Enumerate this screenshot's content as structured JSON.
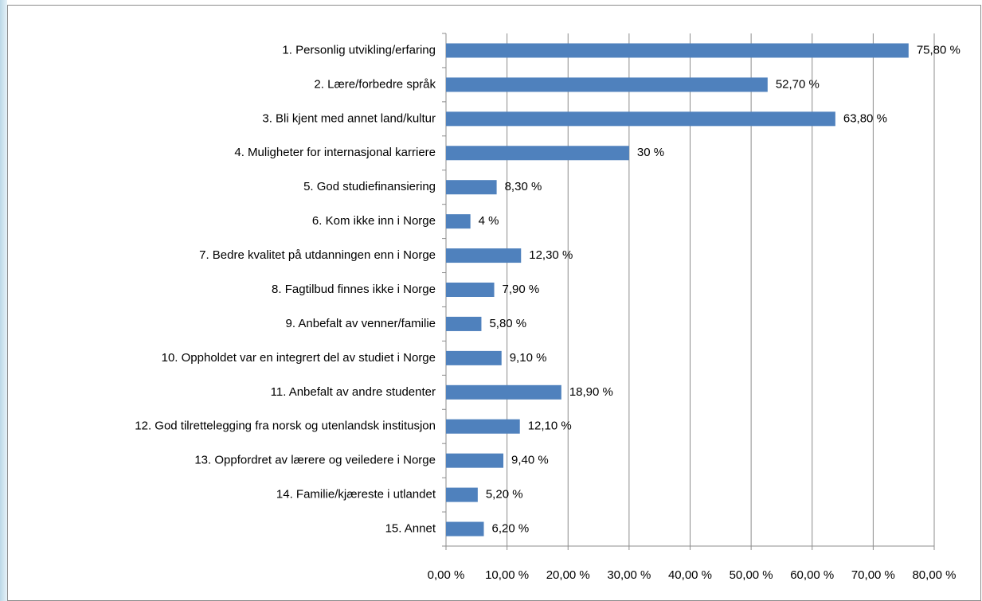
{
  "chart_data": {
    "type": "hbar",
    "categories": [
      "1. Personlig utvikling/erfaring",
      "2. Lære/forbedre språk",
      "3. Bli kjent med annet land/kultur",
      "4. Muligheter for internasjonal karriere",
      "5. God studiefinansiering",
      "6. Kom ikke inn i Norge",
      "7. Bedre kvalitet på utdanningen enn i Norge",
      "8. Fagtilbud finnes ikke i Norge",
      "9. Anbefalt av venner/familie",
      "10. Oppholdet var en integrert del av studiet i Norge",
      "11. Anbefalt av andre studenter",
      "12. God tilrettelegging fra norsk og utenlandsk institusjon",
      "13. Oppfordret av lærere og veiledere i Norge",
      "14. Familie/kjæreste i utlandet",
      "15. Annet"
    ],
    "values": [
      75.8,
      52.7,
      63.8,
      30,
      8.3,
      4,
      12.3,
      7.9,
      5.8,
      9.1,
      18.9,
      12.1,
      9.4,
      5.2,
      6.2
    ],
    "value_labels": [
      "75,80 %",
      "52,70 %",
      "63,80 %",
      "30 %",
      "8,30 %",
      "4 %",
      "12,30 %",
      "7,90 %",
      "5,80 %",
      "9,10 %",
      "18,90 %",
      "12,10 %",
      "9,40 %",
      "5,20 %",
      "6,20 %"
    ],
    "color": "#4f81bd",
    "xlim": [
      0,
      80
    ],
    "xticks": [
      {
        "value": 0,
        "label": "0,00 %"
      },
      {
        "value": 10,
        "label": "10,00 %"
      },
      {
        "value": 20,
        "label": "20,00 %"
      },
      {
        "value": 30,
        "label": "30,00 %"
      },
      {
        "value": 40,
        "label": "40,00 %"
      },
      {
        "value": 50,
        "label": "50,00 %"
      },
      {
        "value": 60,
        "label": "60,00 %"
      },
      {
        "value": 70,
        "label": "70,00 %"
      },
      {
        "value": 80,
        "label": "80,00 %"
      }
    ],
    "grid": true
  }
}
